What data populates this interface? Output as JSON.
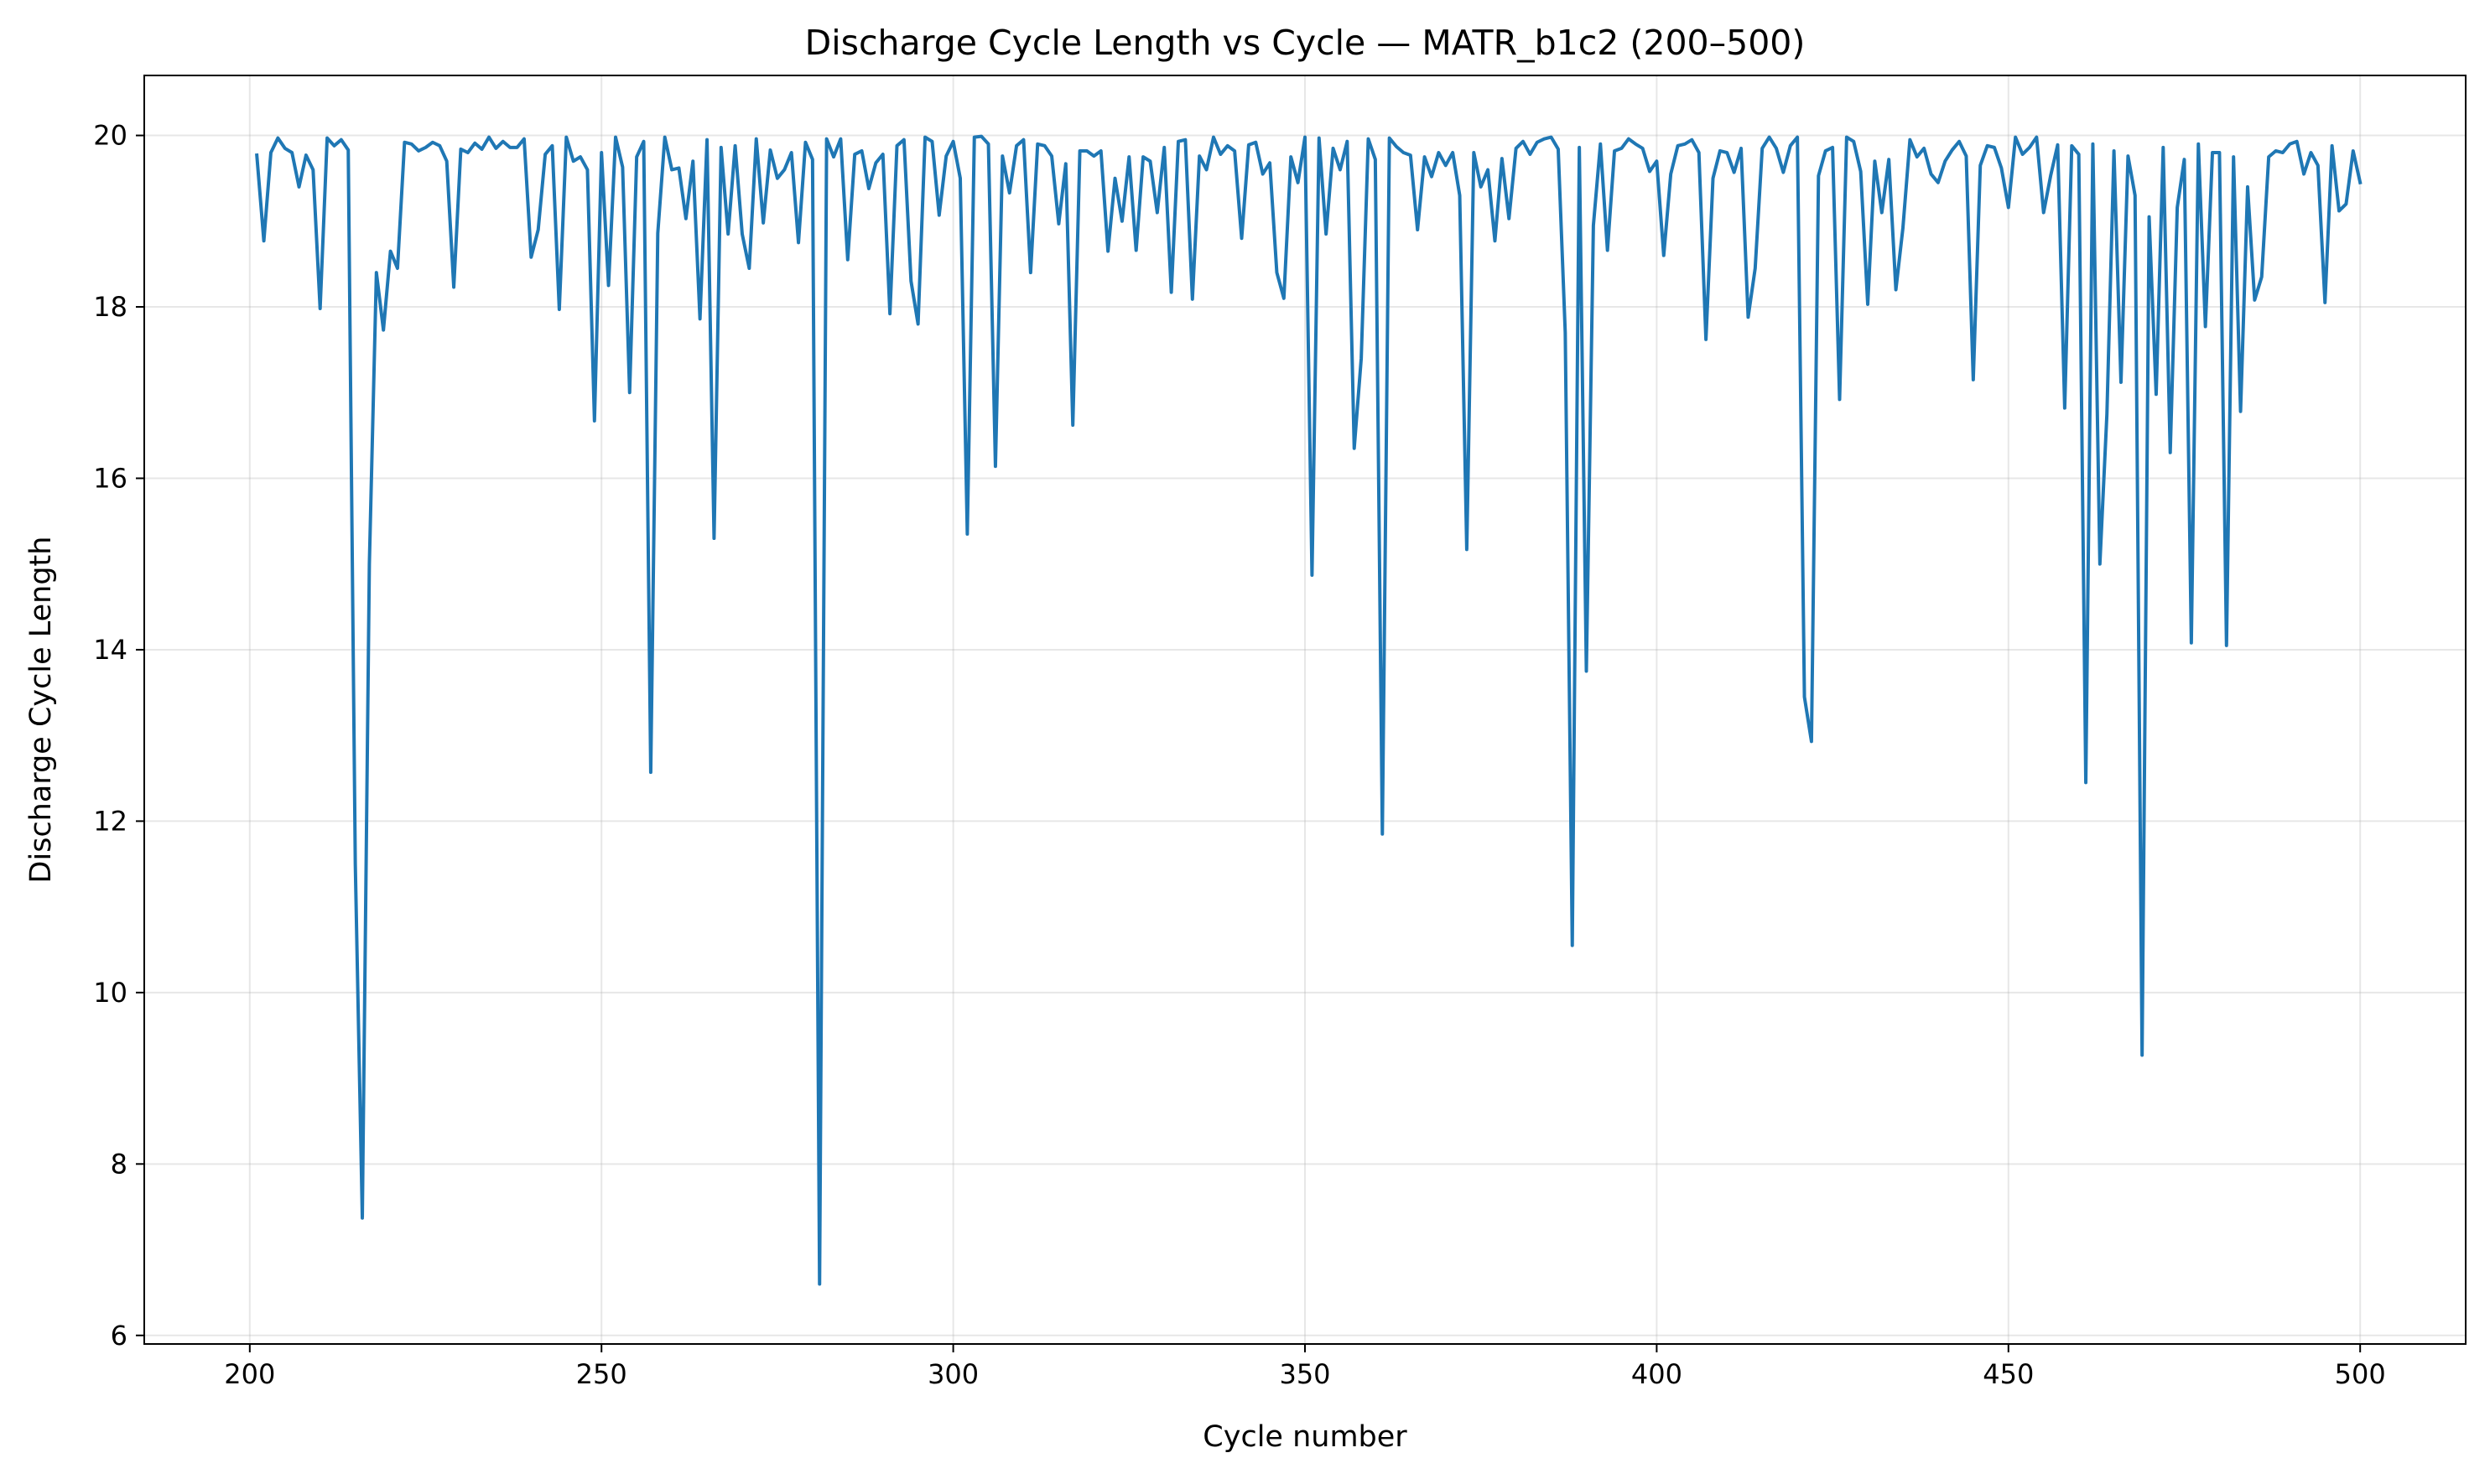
{
  "chart_data": {
    "type": "line",
    "title": "Discharge Cycle Length vs Cycle — MATR_b1c2 (200–500)",
    "xlabel": "Cycle number",
    "ylabel": "Discharge Cycle Length",
    "xlim": [
      185,
      515
    ],
    "ylim": [
      5.9,
      20.7
    ],
    "x_ticks": [
      200,
      250,
      300,
      350,
      400,
      450,
      500
    ],
    "y_ticks": [
      6,
      8,
      10,
      12,
      14,
      16,
      18,
      20
    ],
    "grid": true,
    "colors": {
      "line": "#1f77b4"
    },
    "series": [
      {
        "x_start": 201,
        "x_step": 1,
        "values": [
          19.77,
          18.77,
          19.8,
          19.97,
          19.85,
          19.8,
          19.4,
          19.77,
          19.6,
          17.98,
          19.97,
          19.88,
          19.95,
          19.83,
          11.5,
          7.37,
          15.0,
          18.4,
          17.73,
          18.65,
          18.45,
          19.92,
          19.9,
          19.82,
          19.86,
          19.92,
          19.88,
          19.7,
          18.23,
          19.84,
          19.8,
          19.91,
          19.84,
          19.98,
          19.85,
          19.93,
          19.86,
          19.86,
          19.96,
          18.58,
          18.9,
          19.78,
          19.88,
          17.97,
          19.98,
          19.7,
          19.75,
          19.6,
          16.67,
          19.8,
          18.25,
          19.98,
          19.63,
          17.0,
          19.75,
          19.93,
          12.57,
          18.86,
          19.98,
          19.6,
          19.62,
          19.03,
          19.7,
          17.86,
          19.95,
          15.3,
          19.86,
          18.85,
          19.88,
          18.85,
          18.45,
          19.96,
          18.98,
          19.83,
          19.5,
          19.6,
          19.8,
          18.75,
          19.92,
          19.72,
          6.6,
          19.96,
          19.75,
          19.96,
          18.55,
          19.78,
          19.82,
          19.38,
          19.68,
          19.78,
          17.92,
          19.88,
          19.95,
          18.3,
          17.8,
          19.98,
          19.93,
          19.07,
          19.76,
          19.93,
          19.5,
          15.35,
          19.98,
          19.99,
          19.9,
          16.14,
          19.76,
          19.33,
          19.88,
          19.95,
          18.4,
          19.9,
          19.88,
          19.76,
          18.97,
          19.67,
          16.62,
          19.82,
          19.82,
          19.76,
          19.82,
          18.65,
          19.5,
          19.0,
          19.75,
          18.66,
          19.75,
          19.7,
          19.1,
          19.86,
          18.17,
          19.93,
          19.95,
          18.09,
          19.76,
          19.6,
          19.98,
          19.78,
          19.88,
          19.82,
          18.8,
          19.89,
          19.92,
          19.55,
          19.68,
          18.4,
          18.1,
          19.75,
          19.45,
          19.98,
          14.87,
          19.97,
          18.85,
          19.85,
          19.6,
          19.93,
          16.35,
          17.4,
          19.96,
          19.72,
          11.85,
          19.97,
          19.87,
          19.8,
          19.77,
          18.9,
          19.75,
          19.52,
          19.8,
          19.65,
          19.8,
          19.3,
          15.17,
          19.8,
          19.4,
          19.6,
          18.77,
          19.73,
          19.03,
          19.85,
          19.93,
          19.78,
          19.92,
          19.96,
          19.98,
          19.84,
          17.7,
          10.55,
          19.86,
          13.75,
          18.95,
          19.9,
          18.66,
          19.82,
          19.85,
          19.96,
          19.9,
          19.85,
          19.58,
          19.7,
          18.6,
          19.55,
          19.88,
          19.9,
          19.95,
          19.8,
          17.62,
          19.5,
          19.82,
          19.8,
          19.57,
          19.85,
          17.88,
          18.45,
          19.85,
          19.98,
          19.85,
          19.57,
          19.88,
          19.98,
          13.45,
          12.93,
          19.53,
          19.82,
          19.86,
          16.92,
          19.98,
          19.93,
          19.58,
          18.03,
          19.7,
          19.1,
          19.72,
          18.2,
          18.92,
          19.95,
          19.75,
          19.85,
          19.55,
          19.45,
          19.7,
          19.83,
          19.93,
          19.76,
          17.15,
          19.65,
          19.88,
          19.86,
          19.62,
          19.16,
          19.98,
          19.78,
          19.86,
          19.98,
          19.1,
          19.53,
          19.89,
          16.82,
          19.88,
          19.78,
          12.45,
          19.9,
          15.0,
          16.75,
          19.82,
          17.12,
          19.76,
          19.3,
          9.27,
          19.05,
          16.98,
          19.86,
          16.3,
          19.16,
          19.72,
          14.08,
          19.9,
          17.77,
          19.8,
          19.8,
          14.05,
          19.75,
          16.78,
          19.4,
          18.08,
          18.35,
          19.75,
          19.82,
          19.8,
          19.9,
          19.93,
          19.55,
          19.8,
          19.65,
          18.05,
          19.88,
          19.12,
          19.2,
          19.82,
          19.45
        ]
      }
    ]
  }
}
